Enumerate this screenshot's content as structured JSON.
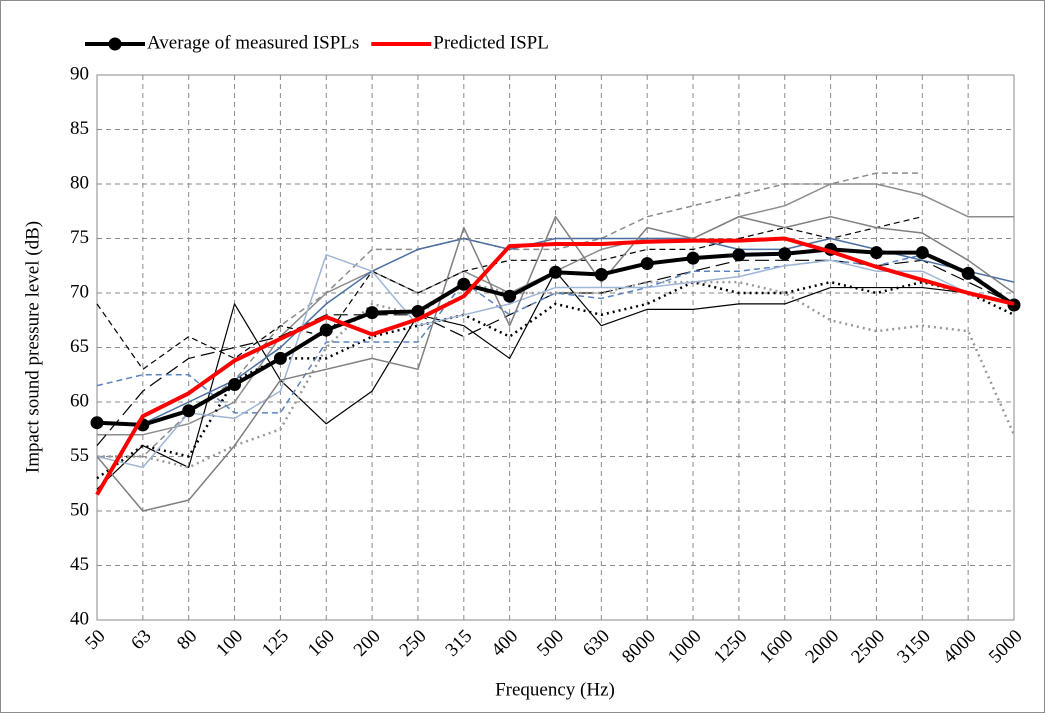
{
  "chart_data": {
    "type": "line",
    "x_label": "Frequency (Hz)",
    "y_label": "Impact sound pressure level (dB)",
    "categories": [
      "50",
      "63",
      "80",
      "100",
      "125",
      "160",
      "200",
      "250",
      "315",
      "400",
      "500",
      "630",
      "8000",
      "1000",
      "1250",
      "1600",
      "2000",
      "2500",
      "3150",
      "4000",
      "5000"
    ],
    "ylim": [
      40,
      90
    ],
    "yticks": [
      40,
      45,
      50,
      55,
      60,
      65,
      70,
      75,
      80,
      85,
      90
    ],
    "grid": true,
    "series": [
      {
        "name": "Average of measured ISPLs",
        "color": "#000000",
        "linewidth": 4,
        "linestyle": "solid",
        "marker": "circle",
        "values": [
          58.1,
          57.9,
          59.2,
          61.6,
          64.0,
          66.6,
          68.2,
          68.3,
          70.8,
          69.7,
          71.9,
          71.7,
          72.7,
          73.2,
          73.5,
          73.6,
          74.0,
          73.7,
          73.7,
          71.8,
          68.9
        ]
      },
      {
        "name": "Predicted ISPL",
        "color": "#ff0000",
        "linewidth": 4,
        "linestyle": "solid",
        "values": [
          51.5,
          58.7,
          60.8,
          63.8,
          65.8,
          67.8,
          66.2,
          67.6,
          69.7,
          74.3,
          74.5,
          74.5,
          74.7,
          74.8,
          74.8,
          75.0,
          73.8,
          72.4,
          71.2,
          70.0,
          69.0
        ]
      },
      {
        "color": "#8c8c8c",
        "linewidth": 1.5,
        "linestyle": "solid",
        "values": [
          57,
          57,
          58,
          60,
          66,
          70,
          72,
          70,
          72,
          70,
          72,
          74,
          75,
          75,
          77,
          78,
          80,
          80,
          79,
          77,
          77
        ]
      },
      {
        "color": "#8c8c8c",
        "linewidth": 1.5,
        "linestyle": "dashed",
        "values": [
          55,
          55,
          59,
          62,
          67,
          70,
          74,
          74,
          75,
          74,
          74,
          75,
          77,
          78,
          79,
          80,
          80,
          81,
          81,
          null,
          null
        ]
      },
      {
        "color": "#000000",
        "linewidth": 1.2,
        "linestyle": "solid",
        "values": [
          52,
          56,
          54,
          69,
          62,
          58,
          61,
          68,
          67,
          64,
          72,
          67,
          68.5,
          68.5,
          69,
          69,
          70.5,
          70.5,
          70.5,
          70,
          69
        ]
      },
      {
        "color": "#000000",
        "linewidth": 1.2,
        "linestyle": "dashed",
        "values": [
          69,
          63,
          66,
          64,
          67,
          66,
          72,
          70,
          72,
          73,
          73,
          73,
          74,
          74,
          75,
          76,
          75,
          76,
          77,
          null,
          null
        ]
      },
      {
        "color": "#000000",
        "linewidth": 1.2,
        "linestyle": "longdash",
        "values": [
          56,
          61,
          64,
          65,
          66,
          68,
          68,
          68,
          66,
          68,
          70,
          70,
          71,
          72,
          73,
          73,
          73,
          72.5,
          73,
          71,
          69
        ]
      },
      {
        "color": "#000000",
        "linewidth": 2.5,
        "linestyle": "dotted",
        "values": [
          53,
          56,
          55,
          62,
          64,
          64,
          66,
          67,
          68,
          66,
          69,
          68,
          69,
          71,
          70,
          70,
          71,
          70,
          71,
          70,
          68
        ]
      },
      {
        "color": "#999999",
        "linewidth": 2.5,
        "linestyle": "dotted",
        "values": [
          55,
          55,
          54,
          56,
          57.5,
          65,
          69,
          68,
          71,
          70,
          70,
          70,
          71,
          71,
          71,
          70,
          67.5,
          66.5,
          67,
          66.5,
          57
        ]
      },
      {
        "color": "#4a6fa0",
        "linewidth": 1.5,
        "linestyle": "solid",
        "values": [
          58,
          58,
          60,
          62,
          65,
          69,
          72,
          74,
          75,
          74,
          75,
          75,
          75,
          75,
          74,
          74,
          75,
          74,
          73,
          72,
          71
        ]
      },
      {
        "color": "#5b83c0",
        "linewidth": 1.5,
        "linestyle": "dashed",
        "values": [
          61.5,
          62.5,
          62.5,
          59,
          59,
          65.5,
          65.5,
          65.5,
          71,
          68,
          70,
          69.5,
          70.5,
          72,
          72,
          72.5,
          73,
          72.5,
          73.5,
          72,
          69
        ]
      },
      {
        "color": "#9fb6d6",
        "linewidth": 1.5,
        "linestyle": "solid",
        "values": [
          55,
          54,
          59,
          58.5,
          61,
          73.5,
          72,
          67,
          68,
          69,
          70.5,
          70.5,
          70.5,
          71,
          71.5,
          72.5,
          73,
          72,
          72,
          70,
          69
        ]
      },
      {
        "color": "#7f7f7f",
        "linewidth": 1.5,
        "linestyle": "solid",
        "values": [
          55,
          50,
          51,
          56,
          62,
          63,
          64,
          63,
          76,
          67,
          77,
          71,
          76,
          75,
          77,
          76,
          77,
          76,
          75.5,
          73,
          70
        ]
      }
    ]
  }
}
